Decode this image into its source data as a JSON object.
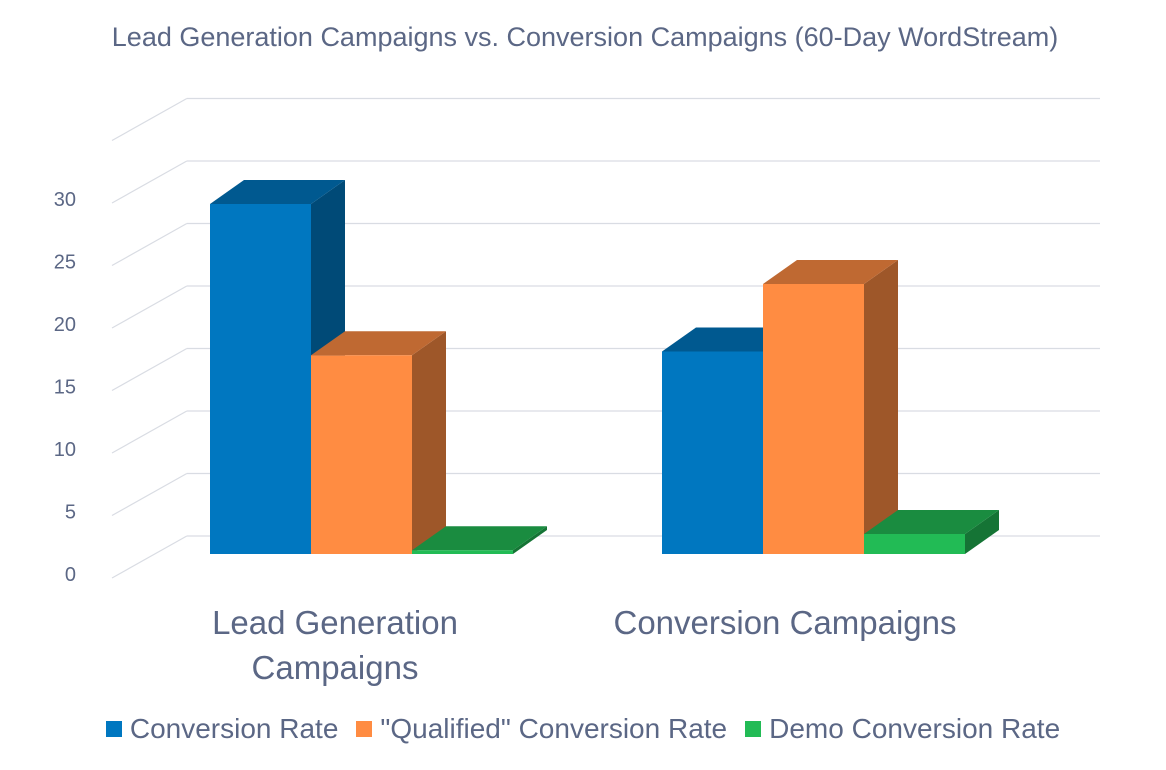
{
  "chart_data": {
    "type": "bar",
    "title": "Lead Generation Campaigns vs. Conversion Campaigns (60-Day WordStream)",
    "categories": [
      "Lead Generation Campaigns",
      "Conversion Campaigns"
    ],
    "series": [
      {
        "name": "Conversion Rate",
        "values": [
          28,
          16.2
        ],
        "color": "#0077c0"
      },
      {
        "name": "\"Qualified\" Conversion Rate",
        "values": [
          15.9,
          21.6
        ],
        "color": "#ff8c42"
      },
      {
        "name": "Demo Conversion Rate",
        "values": [
          0.3,
          1.6
        ],
        "color": "#22bb55"
      }
    ],
    "ylim": [
      0,
      30
    ],
    "yticks": [
      0,
      5,
      10,
      15,
      20,
      25,
      30
    ],
    "grid": true,
    "legend": "bottom",
    "style": "3d-clustered-column"
  }
}
